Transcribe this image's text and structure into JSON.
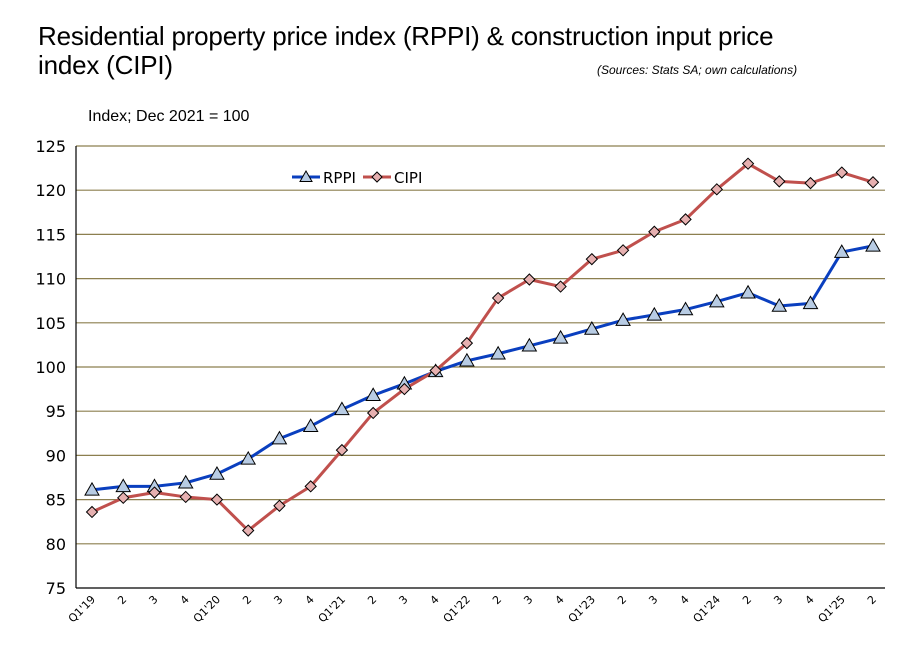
{
  "chart_data": {
    "type": "line",
    "title": "Residential property price index (RPPI) & construction input price index (CIPI)",
    "source": "(Sources: Stats SA; own calculations)",
    "ylabel": "Index; Dec 2021 = 100",
    "xlabel": "",
    "ylim": [
      75,
      125
    ],
    "yticks": [
      75,
      80,
      85,
      90,
      95,
      100,
      105,
      110,
      115,
      120,
      125
    ],
    "grid": true,
    "legend_position": "top-left",
    "categories": [
      "Q1'19",
      "2",
      "3",
      "4",
      "Q1'20",
      "2",
      "3",
      "4",
      "Q1'21",
      "2",
      "3",
      "4",
      "Q1'22",
      "2",
      "3",
      "4",
      "Q1'23",
      "2",
      "3",
      "4",
      "Q1'24",
      "2",
      "3",
      "4",
      "Q1'25",
      "2"
    ],
    "series": [
      {
        "name": "RPPI",
        "color": "#0A3FBF",
        "marker": "triangle",
        "marker_fill": "#B8CCE4",
        "values": [
          86.1,
          86.5,
          86.5,
          86.9,
          87.9,
          89.6,
          91.9,
          93.3,
          95.2,
          96.8,
          98.1,
          99.5,
          100.7,
          101.5,
          102.4,
          103.3,
          104.3,
          105.3,
          105.9,
          106.5,
          107.4,
          108.4,
          106.9,
          107.2,
          113.0,
          113.7
        ]
      },
      {
        "name": "CIPI",
        "color": "#C0504D",
        "marker": "diamond",
        "marker_fill": "#E6B0B0",
        "values": [
          83.6,
          85.2,
          85.8,
          85.3,
          85.0,
          81.5,
          84.3,
          86.5,
          90.6,
          94.8,
          97.5,
          99.6,
          102.7,
          107.8,
          109.9,
          109.1,
          112.2,
          113.2,
          115.3,
          116.7,
          120.1,
          123.0,
          121.0,
          120.8,
          122.0,
          120.9
        ]
      }
    ]
  }
}
